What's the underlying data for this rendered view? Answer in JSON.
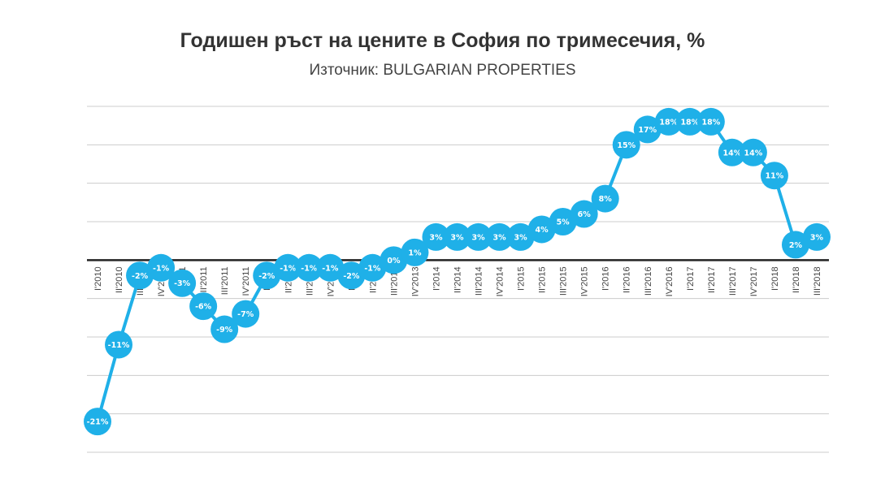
{
  "chart_data": {
    "type": "line",
    "title": "Годишен ръст на цените в София по тримесечия, %",
    "subtitle": "Източник: BULGARIAN PROPERTIES",
    "categories": [
      "I'2010",
      "II'2010",
      "III'2010",
      "IV'2010",
      "I'2011",
      "II'2011",
      "III'2011",
      "IV'2011",
      "I'2012",
      "II'2012",
      "III'2012",
      "IV'2012",
      "I'2013",
      "II'2013",
      "III'2013",
      "IV'2013",
      "I'2014",
      "II'2014",
      "III'2014",
      "IV'2014",
      "I'2015",
      "II'2015",
      "III'2015",
      "IV'2015",
      "I'2016",
      "II'2016",
      "III'2016",
      "IV'2016",
      "I'2017",
      "II'2017",
      "III'2017",
      "IV'2017",
      "I'2018",
      "II'2018",
      "III'2018"
    ],
    "series": [
      {
        "values": [
          -21,
          -11,
          -2,
          -1,
          -3,
          -6,
          -9,
          -7,
          -2,
          -1,
          -1,
          -1,
          -2,
          -1,
          0,
          1,
          3,
          3,
          3,
          3,
          3,
          4,
          5,
          6,
          8,
          15,
          17,
          18,
          18,
          18,
          14,
          14,
          11,
          2,
          3
        ],
        "labels": [
          "-21%",
          "-11%",
          "-2%",
          "-1%",
          "-3%",
          "-6%",
          "-9%",
          "-7%",
          "-2%",
          "-1%",
          "-1%",
          "-1%",
          "-2%",
          "-1%",
          "0%",
          "1%",
          "3%",
          "3%",
          "3%",
          "3%",
          "3%",
          "4%",
          "5%",
          "6%",
          "8%",
          "15%",
          "17%",
          "18%",
          "18%",
          "18%",
          "14%",
          "14%",
          "11%",
          "2%",
          "3%"
        ]
      }
    ],
    "ylim": [
      -25,
      20
    ],
    "gridlines": true,
    "legend": "none",
    "color": "#1fb0e8",
    "zero_line_color": "#222222",
    "grid_color": "#cccccc"
  }
}
